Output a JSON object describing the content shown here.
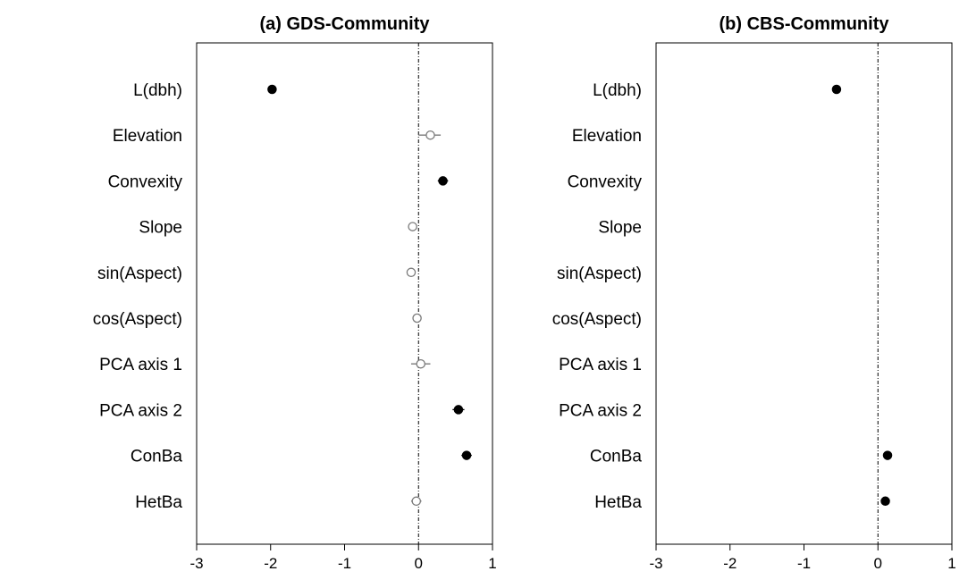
{
  "chart_data": [
    {
      "type": "scatter",
      "title": "(a) GDS-Community",
      "xlim": [
        -3,
        1
      ],
      "xticks": [
        "-3",
        "-2",
        "-1",
        "0",
        "1"
      ],
      "reference_line_x": 0,
      "categories": [
        "L(dbh)",
        "Elevation",
        "Convexity",
        "Slope",
        "sin(Aspect)",
        "cos(Aspect)",
        "PCA axis 1",
        "PCA axis 2",
        "ConBa",
        "HetBa"
      ],
      "estimates": [
        -1.98,
        0.16,
        0.33,
        -0.08,
        -0.1,
        -0.02,
        0.03,
        0.54,
        0.65,
        -0.03
      ],
      "ci_low": [
        -2.02,
        0.0,
        0.26,
        -0.13,
        -0.16,
        -0.07,
        -0.1,
        0.46,
        0.58,
        -0.1
      ],
      "ci_high": [
        -1.94,
        0.3,
        0.4,
        -0.03,
        -0.04,
        0.03,
        0.16,
        0.62,
        0.72,
        0.04
      ],
      "significant": [
        true,
        false,
        true,
        false,
        false,
        false,
        false,
        true,
        true,
        false
      ]
    },
    {
      "type": "scatter",
      "title": "(b) CBS-Community",
      "xlim": [
        -3,
        1
      ],
      "xticks": [
        "-3",
        "-2",
        "-1",
        "0",
        "1"
      ],
      "reference_line_x": 0,
      "categories": [
        "L(dbh)",
        "Elevation",
        "Convexity",
        "Slope",
        "sin(Aspect)",
        "cos(Aspect)",
        "PCA axis 1",
        "PCA axis 2",
        "ConBa",
        "HetBa"
      ],
      "estimates": [
        -0.56,
        null,
        null,
        null,
        null,
        null,
        null,
        null,
        0.13,
        0.1
      ],
      "ci_low": [
        -0.6,
        null,
        null,
        null,
        null,
        null,
        null,
        null,
        0.09,
        0.06
      ],
      "ci_high": [
        -0.52,
        null,
        null,
        null,
        null,
        null,
        null,
        null,
        0.17,
        0.14
      ],
      "significant": [
        true,
        false,
        false,
        false,
        false,
        false,
        false,
        false,
        true,
        true
      ]
    }
  ]
}
